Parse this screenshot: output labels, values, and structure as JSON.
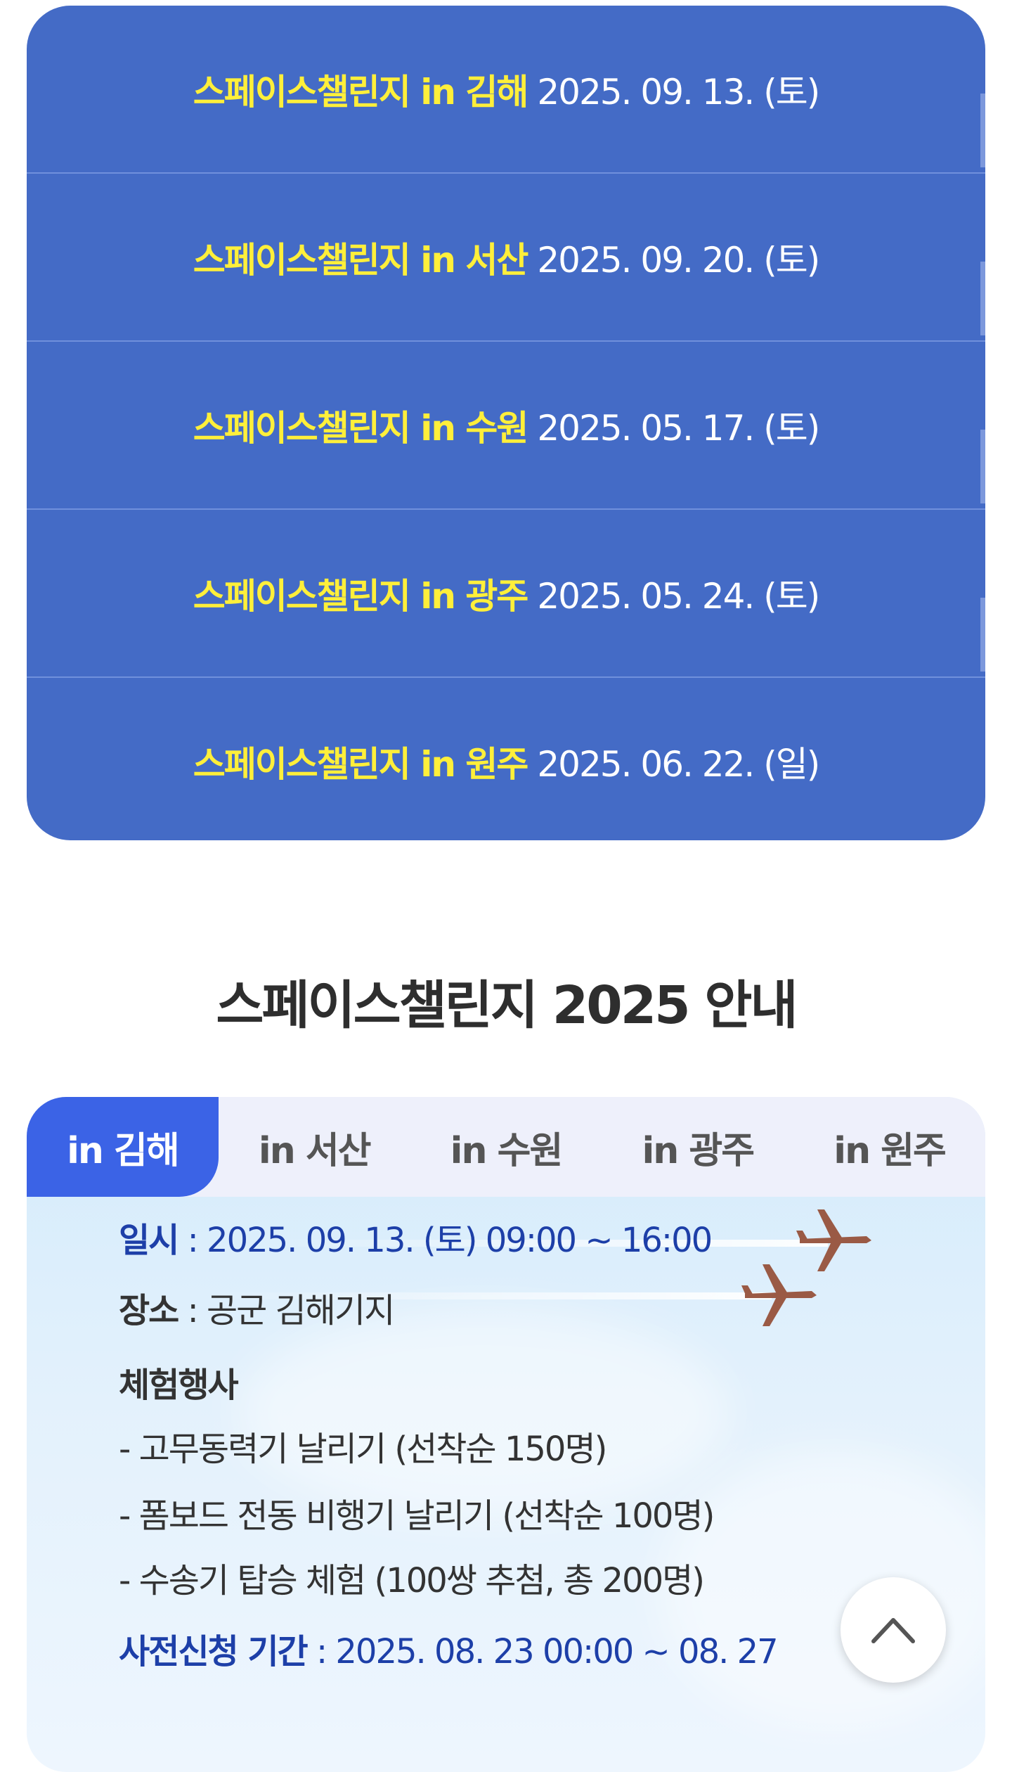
{
  "schedule": [
    {
      "title": "스페이스챌린지 in 김해",
      "date": "2025. 09. 13. (토)"
    },
    {
      "title": "스페이스챌린지 in 서산",
      "date": "2025. 09. 20. (토)"
    },
    {
      "title": "스페이스챌린지 in 수원",
      "date": "2025. 05. 17. (토)"
    },
    {
      "title": "스페이스챌린지 in 광주",
      "date": "2025. 05. 24. (토)"
    },
    {
      "title": "스페이스챌린지 in 원주",
      "date": "2025. 06. 22. (일)"
    }
  ],
  "section_title": "스페이스챌린지 2025 안내",
  "tabs": [
    {
      "label": "in 김해",
      "active": true
    },
    {
      "label": "in 서산",
      "active": false
    },
    {
      "label": "in 수원",
      "active": false
    },
    {
      "label": "in 광주",
      "active": false
    },
    {
      "label": "in 원주",
      "active": false
    }
  ],
  "details": {
    "datetime_label": "일시",
    "datetime_value": ": 2025. 09. 13. (토) 09:00 ~ 16:00",
    "place_label": "장소",
    "place_value": ": 공군 김해기지",
    "events_label": "체험행사",
    "events": [
      "- 고무동력기 날리기 (선착순 150명)",
      "- 폼보드 전동 비행기 날리기 (선착순 100명)",
      "- 수송기 탑승 체험 (100쌍 추첨, 총 200명)"
    ],
    "apply_label": "사전신청 기간",
    "apply_value": ": 2025. 08. 23 00:00 ~ 08. 27"
  },
  "colors": {
    "schedule_bg": "#446bc6",
    "title_yellow": "#ffef3a",
    "tab_active": "#3b63e6",
    "label_blue": "#1d3fa8"
  },
  "scroll_top_icon": "chevron-up-icon"
}
